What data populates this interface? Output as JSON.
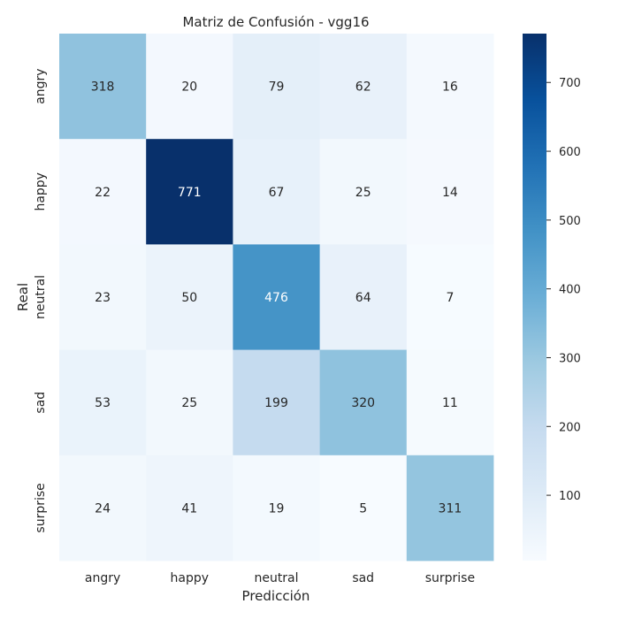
{
  "chart_data": {
    "type": "heatmap",
    "title": "Matriz de Confusión - vgg16",
    "xlabel": "Predicción",
    "ylabel": "Real",
    "x_categories": [
      "angry",
      "happy",
      "neutral",
      "sad",
      "surprise"
    ],
    "y_categories": [
      "angry",
      "happy",
      "neutral",
      "sad",
      "surprise"
    ],
    "matrix": [
      [
        318,
        20,
        79,
        62,
        16
      ],
      [
        22,
        771,
        67,
        25,
        14
      ],
      [
        23,
        50,
        476,
        64,
        7
      ],
      [
        53,
        25,
        199,
        320,
        11
      ],
      [
        24,
        41,
        19,
        5,
        311
      ]
    ],
    "colormap": "Blues",
    "vmin": 5,
    "vmax": 771,
    "colorbar_ticks": [
      100,
      200,
      300,
      400,
      500,
      600,
      700
    ],
    "colors": {
      "low": "#f7fbff",
      "high": "#08306b"
    }
  }
}
